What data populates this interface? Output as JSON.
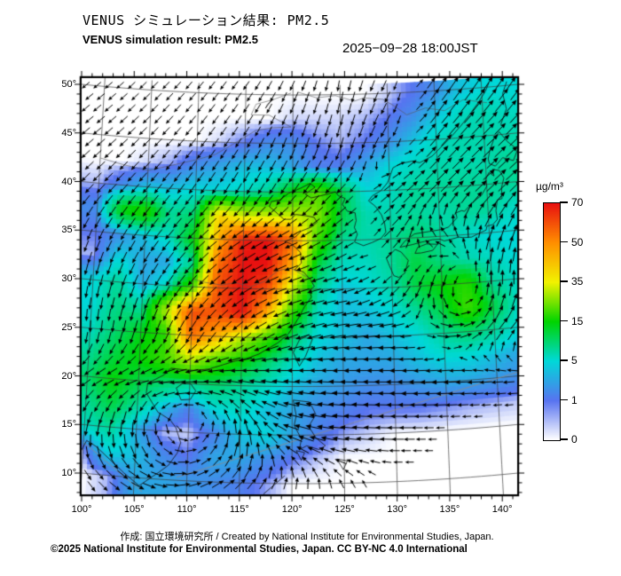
{
  "header": {
    "title_ja": "VENUS シミュレーション結果: PM2.5",
    "title_en": "VENUS simulation result: PM2.5",
    "timestamp": "2025−09−28 18:00JST"
  },
  "footer": {
    "credit": "作成:  国立環境研究所 / Created by National Institute for Environmental Studies, Japan.",
    "license": "©2025 National Institute for Environmental Studies, Japan. CC BY-NC 4.0 International"
  },
  "chart_data": {
    "type": "heatmap",
    "title": "VENUS simulation result: PM2.5",
    "timestamp": "2025-09-28 18:00JST",
    "lon_ticks": [
      100,
      105,
      110,
      115,
      120,
      125,
      130,
      135,
      140
    ],
    "lat_ticks": [
      10,
      15,
      20,
      25,
      30,
      35,
      40,
      45,
      50
    ],
    "lon_range": [
      100,
      141.4
    ],
    "lat_range": [
      10,
      50
    ],
    "grid_on": true,
    "colorbar": {
      "unit": "µg/m³",
      "position": "right",
      "tick_values": [
        0,
        1,
        5,
        15,
        35,
        50,
        70
      ],
      "tick_colors": [
        "#ffffff",
        "#5873f0",
        "#00d8d8",
        "#00d400",
        "#f2f200",
        "#ff8e00",
        "#e81010"
      ]
    },
    "pm25_grid": {
      "units": "µg/m³",
      "lon_start": 100,
      "lon_step": 2.5,
      "lat_start": 50,
      "lat_step": -2.5,
      "values": [
        [
          0,
          0,
          0,
          0,
          0,
          0,
          0,
          0,
          0,
          0,
          0,
          0,
          0.3,
          1,
          2,
          4,
          5,
          5
        ],
        [
          0,
          0,
          0,
          0,
          0,
          0,
          0,
          0,
          0.3,
          0.3,
          0.3,
          0.5,
          1,
          2,
          4,
          6,
          7,
          6
        ],
        [
          0,
          0,
          0,
          0,
          0,
          0.3,
          1,
          2,
          2,
          1,
          0.5,
          1,
          2,
          4,
          6,
          7,
          7,
          7
        ],
        [
          0,
          0,
          0.3,
          0.7,
          2,
          3,
          4,
          4,
          3,
          1.5,
          1.5,
          3,
          5,
          6,
          7,
          7,
          7,
          8
        ],
        [
          0.5,
          2,
          4,
          4,
          5,
          5,
          6,
          8,
          15,
          22,
          12,
          5,
          6,
          8,
          8,
          8,
          8,
          8
        ],
        [
          2,
          15,
          18,
          8,
          10,
          40,
          32,
          32,
          32,
          26,
          12,
          7,
          7,
          8,
          7,
          8,
          8,
          6
        ],
        [
          1,
          2,
          4,
          6,
          15,
          45,
          68,
          70,
          55,
          20,
          8,
          7,
          8,
          10,
          8,
          6,
          5,
          5
        ],
        [
          0.5,
          5,
          3,
          3,
          8,
          55,
          70,
          70,
          45,
          12,
          6,
          6,
          8,
          12,
          9,
          7,
          6,
          5
        ],
        [
          5,
          8,
          3,
          6,
          20,
          60,
          70,
          60,
          30,
          8,
          4,
          5,
          7,
          12,
          15,
          18,
          8,
          6
        ],
        [
          5,
          9,
          8,
          30,
          60,
          60,
          70,
          45,
          18,
          6,
          4,
          4,
          5,
          8,
          12,
          20,
          12,
          6
        ],
        [
          6,
          10,
          14,
          18,
          55,
          45,
          30,
          20,
          10,
          5,
          4,
          3,
          4,
          5,
          8,
          10,
          8,
          5
        ],
        [
          8,
          12,
          15,
          20,
          30,
          20,
          15,
          10,
          6,
          4,
          3,
          3,
          3,
          4,
          5,
          5,
          4,
          3
        ],
        [
          10,
          15,
          12,
          10,
          8,
          10,
          8,
          6,
          4,
          3,
          2.5,
          2,
          2,
          2.5,
          3,
          3,
          2.5,
          2
        ],
        [
          8,
          12,
          8,
          4,
          1.5,
          5,
          6,
          4,
          3,
          2,
          1.5,
          1,
          1,
          1,
          0.8,
          0.6,
          0.5,
          0.4
        ],
        [
          6,
          8,
          3,
          0.4,
          0.3,
          1.5,
          4,
          5,
          3,
          1.5,
          0.6,
          0.3,
          0,
          0,
          0,
          0,
          0,
          0
        ],
        [
          0.5,
          5,
          4,
          2,
          1,
          3,
          3,
          2,
          1,
          0.4,
          0,
          0,
          0,
          0,
          0,
          0,
          0,
          0
        ],
        [
          0,
          0.5,
          3,
          3,
          2.5,
          2,
          1.5,
          0.7,
          0,
          0,
          0,
          0,
          0,
          0,
          0,
          0,
          0,
          0
        ]
      ]
    },
    "wind_grid": {
      "lon_start": 100,
      "lon_step": 5,
      "lat_start": 50,
      "lat_step": -5,
      "dir_deg": [
        [
          220,
          225,
          230,
          235,
          245,
          260,
          245,
          55,
          55
        ],
        [
          220,
          225,
          232,
          238,
          250,
          255,
          240,
          50,
          45
        ],
        [
          225,
          230,
          235,
          240,
          235,
          225,
          40,
          45,
          42
        ],
        [
          245,
          235,
          225,
          212,
          205,
          215,
          45,
          140,
          70
        ],
        [
          258,
          245,
          230,
          213,
          198,
          192,
          225,
          260,
          90
        ],
        [
          268,
          255,
          240,
          220,
          200,
          188,
          182,
          355,
          50
        ],
        [
          210,
          198,
          180,
          168,
          172,
          178,
          180,
          182,
          184
        ],
        [
          255,
          268,
          0,
          90,
          160,
          175,
          180,
          182,
          185
        ],
        [
          300,
          330,
          10,
          45,
          80,
          120,
          0,
          0,
          0
        ]
      ],
      "mag": [
        [
          0.3,
          0.3,
          0.3,
          0.35,
          0.4,
          0.4,
          0.5,
          0.7,
          0.7
        ],
        [
          0.4,
          0.4,
          0.4,
          0.4,
          0.45,
          0.5,
          0.6,
          0.8,
          0.8
        ],
        [
          0.5,
          0.5,
          0.5,
          0.55,
          0.55,
          0.6,
          0.7,
          0.8,
          0.8
        ],
        [
          0.5,
          0.55,
          0.6,
          0.7,
          0.65,
          0.6,
          0.7,
          0.55,
          0.7
        ],
        [
          0.5,
          0.55,
          0.6,
          0.7,
          0.7,
          0.6,
          0.6,
          0.7,
          0.7
        ],
        [
          0.5,
          0.55,
          0.6,
          0.6,
          0.7,
          0.7,
          0.8,
          0.7,
          0.7
        ],
        [
          0.5,
          0.6,
          0.7,
          0.8,
          0.8,
          0.9,
          0.9,
          0.9,
          0.5
        ],
        [
          0.6,
          0.8,
          0.25,
          0.9,
          0.9,
          0.9,
          0.6,
          0.1,
          0
        ],
        [
          0.5,
          0.7,
          0.6,
          0.7,
          0.5,
          0.3,
          0,
          0,
          0
        ]
      ]
    }
  }
}
